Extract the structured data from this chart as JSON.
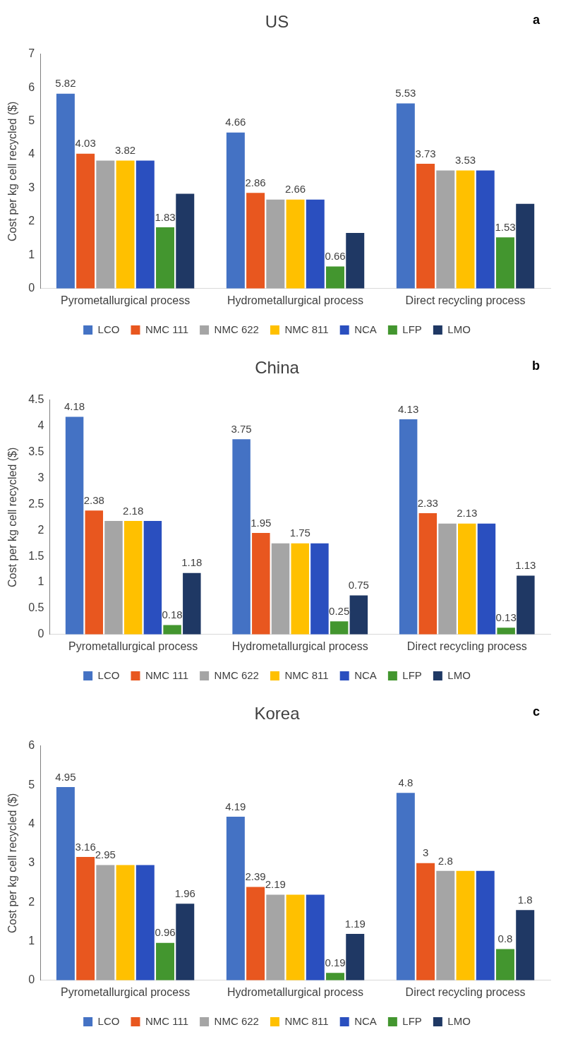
{
  "chart_data": [
    {
      "type": "bar",
      "title": "US",
      "annotations": [
        "a"
      ],
      "ylabel": "Cost per kg cell recycled ($)",
      "categories": [
        "Pyrometallurgical process",
        "Hydrometallurgical process",
        "Direct recycling process"
      ],
      "ylim": [
        0,
        7
      ],
      "yticks": [
        0,
        1,
        2,
        3,
        4,
        5,
        6,
        7
      ],
      "legend": "bottom",
      "series": [
        {
          "name": "LCO",
          "color": "#4472c4",
          "values": [
            5.82,
            4.66,
            5.53
          ],
          "value_labels": [
            "5.82",
            "4.66",
            "5.53"
          ]
        },
        {
          "name": "NMC 111",
          "color": "#e8571f",
          "values": [
            4.03,
            2.86,
            3.73
          ],
          "value_labels": [
            "4.03",
            "2.86",
            "3.73"
          ]
        },
        {
          "name": "NMC 622",
          "color": "#a5a5a5",
          "values": [
            3.82,
            2.66,
            3.53
          ]
        },
        {
          "name": "NMC 811",
          "color": "#ffc000",
          "values": [
            3.82,
            2.66,
            3.53
          ],
          "value_labels": [
            "3.82",
            "2.66",
            "3.53"
          ]
        },
        {
          "name": "NCA",
          "color": "#2a4fbf",
          "values": [
            3.82,
            2.66,
            3.53
          ]
        },
        {
          "name": "LFP",
          "color": "#43962f",
          "values": [
            1.83,
            0.66,
            1.53
          ],
          "value_labels": [
            "1.83",
            "0.66",
            "1.53"
          ]
        },
        {
          "name": "LMO",
          "color": "#1f3864",
          "values": [
            2.83,
            1.66,
            2.53
          ]
        }
      ]
    },
    {
      "type": "bar",
      "title": "China",
      "annotations": [
        "b"
      ],
      "ylabel": "Cost per kg cell recycled ($)",
      "categories": [
        "Pyrometallurgical process",
        "Hydrometallurgical process",
        "Direct recycling process"
      ],
      "ylim": [
        0,
        4.5
      ],
      "yticks": [
        0,
        0.5,
        1,
        1.5,
        2,
        2.5,
        3,
        3.5,
        4,
        4.5
      ],
      "legend": "bottom",
      "series": [
        {
          "name": "LCO",
          "color": "#4472c4",
          "values": [
            4.18,
            3.75,
            4.13
          ],
          "value_labels": [
            "4.18",
            "3.75",
            "4.13"
          ]
        },
        {
          "name": "NMC 111",
          "color": "#e8571f",
          "values": [
            2.38,
            1.95,
            2.33
          ],
          "value_labels": [
            "2.38",
            "1.95",
            "2.33"
          ]
        },
        {
          "name": "NMC 622",
          "color": "#a5a5a5",
          "values": [
            2.18,
            1.75,
            2.13
          ]
        },
        {
          "name": "NMC 811",
          "color": "#ffc000",
          "values": [
            2.18,
            1.75,
            2.13
          ],
          "value_labels": [
            "2.18",
            "1.75",
            "2.13"
          ]
        },
        {
          "name": "NCA",
          "color": "#2a4fbf",
          "values": [
            2.18,
            1.75,
            2.13
          ]
        },
        {
          "name": "LFP",
          "color": "#43962f",
          "values": [
            0.18,
            0.25,
            0.13
          ],
          "value_labels": [
            "0.18",
            "0.25",
            "0.13"
          ]
        },
        {
          "name": "LMO",
          "color": "#1f3864",
          "values": [
            1.18,
            0.75,
            1.13
          ],
          "value_labels": [
            "1.18",
            "0.75",
            "1.13"
          ]
        }
      ]
    },
    {
      "type": "bar",
      "title": "Korea",
      "annotations": [
        "c"
      ],
      "ylabel": "Cost per kg cell recycled ($)",
      "categories": [
        "Pyrometallurgical process",
        "Hydrometallurgical process",
        "Direct recycling process"
      ],
      "ylim": [
        0,
        6
      ],
      "yticks": [
        0,
        1,
        2,
        3,
        4,
        5,
        6
      ],
      "legend": "bottom",
      "series": [
        {
          "name": "LCO",
          "color": "#4472c4",
          "values": [
            4.95,
            4.19,
            4.8
          ],
          "value_labels": [
            "4.95",
            "4.19",
            "4.8"
          ]
        },
        {
          "name": "NMC 111",
          "color": "#e8571f",
          "values": [
            3.16,
            2.39,
            3
          ],
          "value_labels": [
            "3.16",
            "2.39",
            "3"
          ]
        },
        {
          "name": "NMC 622",
          "color": "#a5a5a5",
          "values": [
            2.95,
            2.19,
            2.8
          ],
          "value_labels": [
            "2.95",
            "2.19",
            "2.8"
          ]
        },
        {
          "name": "NMC 811",
          "color": "#ffc000",
          "values": [
            2.95,
            2.19,
            2.8
          ]
        },
        {
          "name": "NCA",
          "color": "#2a4fbf",
          "values": [
            2.95,
            2.19,
            2.8
          ]
        },
        {
          "name": "LFP",
          "color": "#43962f",
          "values": [
            0.96,
            0.19,
            0.8
          ],
          "value_labels": [
            "0.96",
            "0.19",
            "0.8"
          ]
        },
        {
          "name": "LMO",
          "color": "#1f3864",
          "values": [
            1.96,
            1.19,
            1.8
          ],
          "value_labels": [
            "1.96",
            "1.19",
            "1.8"
          ]
        }
      ]
    }
  ]
}
